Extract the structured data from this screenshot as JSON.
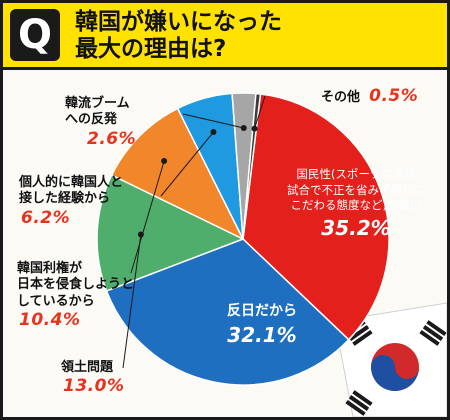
{
  "header": {
    "q_badge": "Q",
    "title_line1": "韓国が嫌いになった",
    "title_line2": "最大の理由は?"
  },
  "chart_data": {
    "type": "pie",
    "title": "韓国が嫌いになった最大の理由は?",
    "slices": [
      {
        "name": "国民性(スポーツの国際試合で不正を省みず勝利にこだわる態度など)が嫌い",
        "value": 35.2,
        "label": "35.2%",
        "color": "#e4201d"
      },
      {
        "name": "反日だから",
        "value": 32.1,
        "label": "32.1%",
        "color": "#1f6fc0"
      },
      {
        "name": "領土問題",
        "value": 13.0,
        "label": "13.0%",
        "color": "#4fae6b"
      },
      {
        "name": "韓国利権が日本を侵食しようとしているから",
        "value": 10.4,
        "label": "10.4%",
        "color": "#f2862a"
      },
      {
        "name": "個人的に韓国人と接した経験から",
        "value": 6.2,
        "label": "6.2%",
        "color": "#1f9ae0"
      },
      {
        "name": "韓流ブームへの反発",
        "value": 2.6,
        "label": "2.6%",
        "color": "#a6a6a6"
      },
      {
        "name": "その他",
        "value": 0.5,
        "label": "0.5%",
        "color": "#3a3a3a"
      }
    ]
  },
  "labels": {
    "kokuminsei_name": "国民性(スポーツの国際\n試合で不正を省みず勝利に\nこだわる態度など)が嫌い",
    "kokuminsei_val": "35.2%",
    "hannichi_name": "反日だから",
    "hannichi_val": "32.1%",
    "ryodo_name": "領土問題",
    "ryodo_val": "13.0%",
    "riken_name": "韓国利権が\n日本を侵食しようと\nしているから",
    "riken_val": "10.4%",
    "kojin_name": "個人的に韓国人と\n接した経験から",
    "kojin_val": "6.2%",
    "kanryu_name": "韓流ブーム\nへの反発",
    "kanryu_val": "2.6%",
    "sonota_name": "その他",
    "sonota_val": "0.5%"
  }
}
